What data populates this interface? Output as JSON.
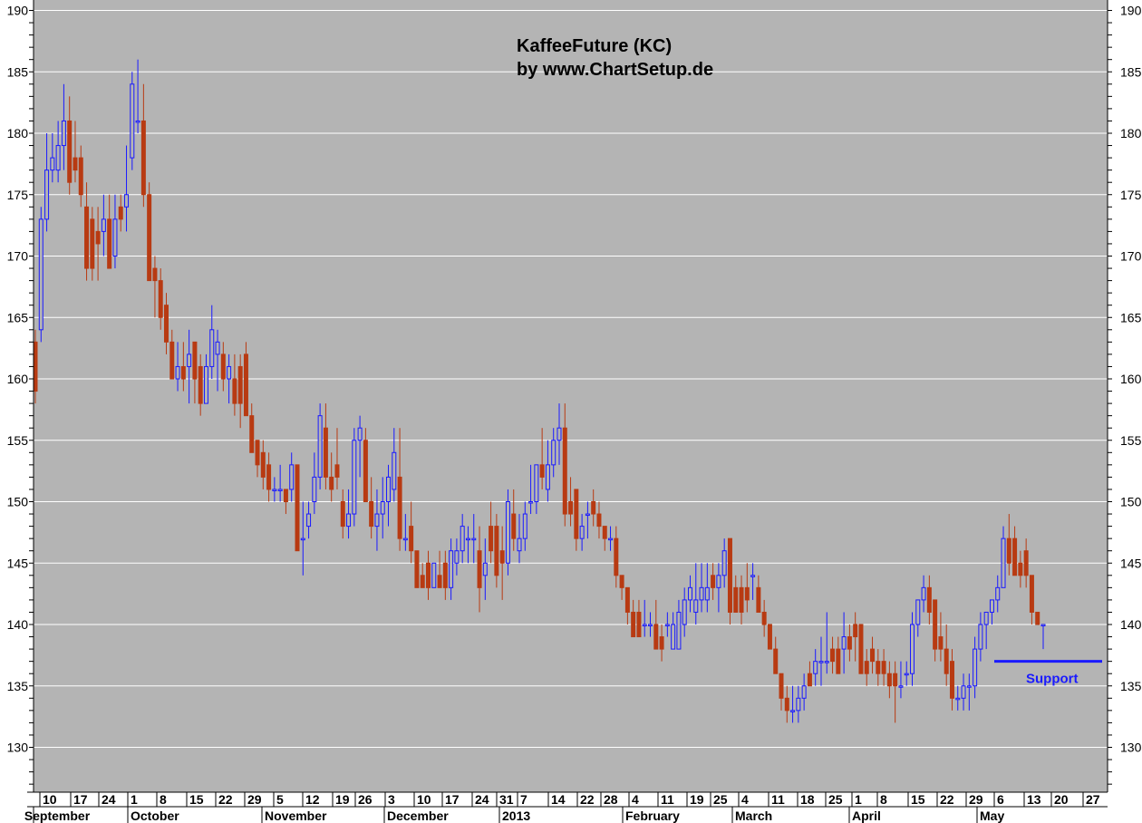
{
  "chart_data": {
    "type": "candlestick",
    "title": "KaffeeFuture (KC)",
    "subtitle": "by www.ChartSetup.de",
    "ylim": [
      126,
      191
    ],
    "yticks": [
      130,
      135,
      140,
      145,
      150,
      155,
      160,
      165,
      170,
      175,
      180,
      185,
      190
    ],
    "grid": true,
    "colors": {
      "background": "#b4b4b4",
      "up": "#1a1aff",
      "down": "#b83a12",
      "grid": "#ffffff",
      "support": "#1a1aff"
    },
    "week_ticks": [
      "10",
      "17",
      "24",
      "1",
      "8",
      "15",
      "22",
      "29",
      "5",
      "12",
      "19",
      "26",
      "3",
      "10",
      "17",
      "24",
      "31",
      "7",
      "14",
      "22",
      "28",
      "4",
      "11",
      "19",
      "25",
      "4",
      "11",
      "18",
      "25",
      "1",
      "8",
      "15",
      "22",
      "29",
      "6",
      "13",
      "20",
      "27"
    ],
    "month_labels": [
      "September",
      "October",
      "November",
      "December",
      "2013",
      "February",
      "March",
      "April",
      "May"
    ],
    "annotation": {
      "label": "Support",
      "value": 137
    },
    "candles": [
      {
        "o": 163,
        "h": 164,
        "l": 158,
        "c": 159
      },
      {
        "o": 164,
        "h": 174,
        "l": 163,
        "c": 173
      },
      {
        "o": 173,
        "h": 180,
        "l": 172,
        "c": 177
      },
      {
        "o": 177,
        "h": 180,
        "l": 176,
        "c": 178
      },
      {
        "o": 177,
        "h": 181,
        "l": 176,
        "c": 179
      },
      {
        "o": 179,
        "h": 184,
        "l": 177,
        "c": 181
      },
      {
        "o": 181,
        "h": 183,
        "l": 175,
        "c": 176
      },
      {
        "o": 178,
        "h": 181,
        "l": 176,
        "c": 177
      },
      {
        "o": 178,
        "h": 179,
        "l": 174,
        "c": 175
      },
      {
        "o": 174,
        "h": 176,
        "l": 168,
        "c": 169
      },
      {
        "o": 173,
        "h": 174,
        "l": 168,
        "c": 169
      },
      {
        "o": 172,
        "h": 174,
        "l": 168,
        "c": 171
      },
      {
        "o": 172,
        "h": 175,
        "l": 170,
        "c": 173
      },
      {
        "o": 173,
        "h": 175,
        "l": 169,
        "c": 169
      },
      {
        "o": 170,
        "h": 175,
        "l": 169,
        "c": 173
      },
      {
        "o": 174,
        "h": 175,
        "l": 172,
        "c": 173
      },
      {
        "o": 174,
        "h": 179,
        "l": 172,
        "c": 175
      },
      {
        "o": 178,
        "h": 185,
        "l": 177,
        "c": 184
      },
      {
        "o": 181,
        "h": 186,
        "l": 180,
        "c": 181
      },
      {
        "o": 181,
        "h": 184,
        "l": 174,
        "c": 175
      },
      {
        "o": 175,
        "h": 176,
        "l": 168,
        "c": 168
      },
      {
        "o": 169,
        "h": 170,
        "l": 165,
        "c": 168
      },
      {
        "o": 168,
        "h": 169,
        "l": 164,
        "c": 165
      },
      {
        "o": 166,
        "h": 167,
        "l": 162,
        "c": 163
      },
      {
        "o": 163,
        "h": 164,
        "l": 160,
        "c": 160
      },
      {
        "o": 160,
        "h": 163,
        "l": 159,
        "c": 161
      },
      {
        "o": 161,
        "h": 163,
        "l": 159,
        "c": 160
      },
      {
        "o": 161,
        "h": 164,
        "l": 158,
        "c": 162
      },
      {
        "o": 163,
        "h": 163,
        "l": 158,
        "c": 160
      },
      {
        "o": 161,
        "h": 162,
        "l": 157,
        "c": 158
      },
      {
        "o": 158,
        "h": 162,
        "l": 158,
        "c": 161
      },
      {
        "o": 161,
        "h": 166,
        "l": 160,
        "c": 164
      },
      {
        "o": 162,
        "h": 164,
        "l": 159,
        "c": 163
      },
      {
        "o": 162,
        "h": 163,
        "l": 159,
        "c": 160
      },
      {
        "o": 160,
        "h": 162,
        "l": 158,
        "c": 161
      },
      {
        "o": 160,
        "h": 162,
        "l": 157,
        "c": 158
      },
      {
        "o": 161,
        "h": 162,
        "l": 156,
        "c": 158
      },
      {
        "o": 162,
        "h": 163,
        "l": 157,
        "c": 157
      },
      {
        "o": 157,
        "h": 158,
        "l": 154,
        "c": 154
      },
      {
        "o": 155,
        "h": 155,
        "l": 152,
        "c": 153
      },
      {
        "o": 154,
        "h": 155,
        "l": 151,
        "c": 152
      },
      {
        "o": 153,
        "h": 154,
        "l": 150,
        "c": 151
      },
      {
        "o": 151,
        "h": 152,
        "l": 150,
        "c": 151
      },
      {
        "o": 151,
        "h": 153,
        "l": 150,
        "c": 151
      },
      {
        "o": 151,
        "h": 151,
        "l": 149,
        "c": 150
      },
      {
        "o": 151,
        "h": 154,
        "l": 150,
        "c": 153
      },
      {
        "o": 153,
        "h": 153,
        "l": 146,
        "c": 146
      },
      {
        "o": 147,
        "h": 150,
        "l": 144,
        "c": 147
      },
      {
        "o": 148,
        "h": 150,
        "l": 147,
        "c": 149
      },
      {
        "o": 150,
        "h": 154,
        "l": 149,
        "c": 152
      },
      {
        "o": 152,
        "h": 158,
        "l": 151,
        "c": 157
      },
      {
        "o": 156,
        "h": 158,
        "l": 151,
        "c": 152
      },
      {
        "o": 152,
        "h": 154,
        "l": 150,
        "c": 151
      },
      {
        "o": 153,
        "h": 156,
        "l": 151,
        "c": 152
      },
      {
        "o": 150,
        "h": 151,
        "l": 147,
        "c": 148
      },
      {
        "o": 148,
        "h": 151,
        "l": 147,
        "c": 149
      },
      {
        "o": 149,
        "h": 156,
        "l": 148,
        "c": 155
      },
      {
        "o": 155,
        "h": 157,
        "l": 152,
        "c": 156
      },
      {
        "o": 155,
        "h": 156,
        "l": 150,
        "c": 150
      },
      {
        "o": 150,
        "h": 152,
        "l": 147,
        "c": 148
      },
      {
        "o": 148,
        "h": 151,
        "l": 146,
        "c": 149
      },
      {
        "o": 149,
        "h": 152,
        "l": 147,
        "c": 150
      },
      {
        "o": 150,
        "h": 153,
        "l": 148,
        "c": 152
      },
      {
        "o": 151,
        "h": 156,
        "l": 150,
        "c": 154
      },
      {
        "o": 152,
        "h": 156,
        "l": 146,
        "c": 147
      },
      {
        "o": 147,
        "h": 149,
        "l": 146,
        "c": 147
      },
      {
        "o": 148,
        "h": 150,
        "l": 145,
        "c": 146
      },
      {
        "o": 146,
        "h": 146,
        "l": 143,
        "c": 143
      },
      {
        "o": 144,
        "h": 145,
        "l": 143,
        "c": 143
      },
      {
        "o": 145,
        "h": 146,
        "l": 142,
        "c": 143
      },
      {
        "o": 143,
        "h": 145,
        "l": 143,
        "c": 145
      },
      {
        "o": 144,
        "h": 146,
        "l": 143,
        "c": 143
      },
      {
        "o": 145,
        "h": 146,
        "l": 142,
        "c": 143
      },
      {
        "o": 143,
        "h": 147,
        "l": 142,
        "c": 146
      },
      {
        "o": 145,
        "h": 147,
        "l": 144,
        "c": 146
      },
      {
        "o": 146,
        "h": 149,
        "l": 145,
        "c": 148
      },
      {
        "o": 147,
        "h": 148,
        "l": 145,
        "c": 147
      },
      {
        "o": 147,
        "h": 149,
        "l": 145,
        "c": 147
      },
      {
        "o": 146,
        "h": 148,
        "l": 141,
        "c": 143
      },
      {
        "o": 144,
        "h": 147,
        "l": 142,
        "c": 145
      },
      {
        "o": 148,
        "h": 150,
        "l": 145,
        "c": 146
      },
      {
        "o": 148,
        "h": 149,
        "l": 143,
        "c": 144
      },
      {
        "o": 146,
        "h": 148,
        "l": 142,
        "c": 145
      },
      {
        "o": 145,
        "h": 151,
        "l": 144,
        "c": 150
      },
      {
        "o": 149,
        "h": 151,
        "l": 146,
        "c": 147
      },
      {
        "o": 146,
        "h": 149,
        "l": 145,
        "c": 147
      },
      {
        "o": 147,
        "h": 150,
        "l": 146,
        "c": 149
      },
      {
        "o": 150,
        "h": 153,
        "l": 149,
        "c": 150
      },
      {
        "o": 150,
        "h": 153,
        "l": 149,
        "c": 153
      },
      {
        "o": 153,
        "h": 156,
        "l": 151,
        "c": 152
      },
      {
        "o": 151,
        "h": 155,
        "l": 150,
        "c": 153
      },
      {
        "o": 153,
        "h": 156,
        "l": 152,
        "c": 155
      },
      {
        "o": 155,
        "h": 158,
        "l": 153,
        "c": 156
      },
      {
        "o": 156,
        "h": 158,
        "l": 148,
        "c": 149
      },
      {
        "o": 150,
        "h": 152,
        "l": 148,
        "c": 149
      },
      {
        "o": 151,
        "h": 151,
        "l": 146,
        "c": 147
      },
      {
        "o": 147,
        "h": 149,
        "l": 146,
        "c": 148
      },
      {
        "o": 149,
        "h": 150,
        "l": 147,
        "c": 149
      },
      {
        "o": 150,
        "h": 151,
        "l": 148,
        "c": 149
      },
      {
        "o": 149,
        "h": 150,
        "l": 147,
        "c": 148
      },
      {
        "o": 148,
        "h": 148,
        "l": 146,
        "c": 147
      },
      {
        "o": 147,
        "h": 148,
        "l": 146,
        "c": 147
      },
      {
        "o": 147,
        "h": 148,
        "l": 143,
        "c": 144
      },
      {
        "o": 144,
        "h": 144,
        "l": 142,
        "c": 143
      },
      {
        "o": 143,
        "h": 143,
        "l": 140,
        "c": 141
      },
      {
        "o": 141,
        "h": 142,
        "l": 139,
        "c": 139
      },
      {
        "o": 141,
        "h": 142,
        "l": 139,
        "c": 139
      },
      {
        "o": 140,
        "h": 142,
        "l": 139,
        "c": 140
      },
      {
        "o": 140,
        "h": 141,
        "l": 139,
        "c": 140
      },
      {
        "o": 140,
        "h": 142,
        "l": 138,
        "c": 138
      },
      {
        "o": 139,
        "h": 140,
        "l": 137,
        "c": 138
      },
      {
        "o": 140,
        "h": 141,
        "l": 139,
        "c": 140
      },
      {
        "o": 138,
        "h": 141,
        "l": 138,
        "c": 140
      },
      {
        "o": 138,
        "h": 142,
        "l": 138,
        "c": 141
      },
      {
        "o": 140,
        "h": 143,
        "l": 139,
        "c": 142
      },
      {
        "o": 142,
        "h": 144,
        "l": 141,
        "c": 143
      },
      {
        "o": 141,
        "h": 145,
        "l": 140,
        "c": 142
      },
      {
        "o": 142,
        "h": 145,
        "l": 141,
        "c": 143
      },
      {
        "o": 142,
        "h": 145,
        "l": 141,
        "c": 143
      },
      {
        "o": 144,
        "h": 145,
        "l": 142,
        "c": 143
      },
      {
        "o": 143,
        "h": 145,
        "l": 141,
        "c": 144
      },
      {
        "o": 144,
        "h": 147,
        "l": 143,
        "c": 146
      },
      {
        "o": 147,
        "h": 147,
        "l": 140,
        "c": 141
      },
      {
        "o": 143,
        "h": 144,
        "l": 141,
        "c": 141
      },
      {
        "o": 143,
        "h": 144,
        "l": 140,
        "c": 141
      },
      {
        "o": 143,
        "h": 145,
        "l": 141,
        "c": 142
      },
      {
        "o": 144,
        "h": 145,
        "l": 142,
        "c": 144
      },
      {
        "o": 143,
        "h": 144,
        "l": 141,
        "c": 141
      },
      {
        "o": 141,
        "h": 142,
        "l": 139,
        "c": 140
      },
      {
        "o": 140,
        "h": 140,
        "l": 138,
        "c": 138
      },
      {
        "o": 138,
        "h": 139,
        "l": 136,
        "c": 136
      },
      {
        "o": 136,
        "h": 136,
        "l": 133,
        "c": 134
      },
      {
        "o": 134,
        "h": 135,
        "l": 132,
        "c": 133
      },
      {
        "o": 133,
        "h": 135,
        "l": 132,
        "c": 133
      },
      {
        "o": 133,
        "h": 135,
        "l": 132,
        "c": 134
      },
      {
        "o": 134,
        "h": 136,
        "l": 133,
        "c": 135
      },
      {
        "o": 136,
        "h": 137,
        "l": 135,
        "c": 135
      },
      {
        "o": 136,
        "h": 138,
        "l": 135,
        "c": 137
      },
      {
        "o": 137,
        "h": 139,
        "l": 135,
        "c": 137
      },
      {
        "o": 137,
        "h": 141,
        "l": 136,
        "c": 137
      },
      {
        "o": 138,
        "h": 139,
        "l": 136,
        "c": 137
      },
      {
        "o": 138,
        "h": 139,
        "l": 136,
        "c": 136
      },
      {
        "o": 138,
        "h": 141,
        "l": 136,
        "c": 139
      },
      {
        "o": 139,
        "h": 140,
        "l": 137,
        "c": 138
      },
      {
        "o": 140,
        "h": 141,
        "l": 137,
        "c": 139
      },
      {
        "o": 140,
        "h": 140,
        "l": 136,
        "c": 136
      },
      {
        "o": 137,
        "h": 138,
        "l": 135,
        "c": 136
      },
      {
        "o": 138,
        "h": 139,
        "l": 136,
        "c": 137
      },
      {
        "o": 137,
        "h": 138,
        "l": 135,
        "c": 136
      },
      {
        "o": 137,
        "h": 138,
        "l": 135,
        "c": 136
      },
      {
        "o": 136,
        "h": 137,
        "l": 134,
        "c": 135
      },
      {
        "o": 136,
        "h": 137,
        "l": 132,
        "c": 135
      },
      {
        "o": 135,
        "h": 137,
        "l": 134,
        "c": 135
      },
      {
        "o": 136,
        "h": 137,
        "l": 135,
        "c": 136
      },
      {
        "o": 136,
        "h": 141,
        "l": 135,
        "c": 140
      },
      {
        "o": 140,
        "h": 142,
        "l": 139,
        "c": 142
      },
      {
        "o": 142,
        "h": 144,
        "l": 141,
        "c": 143
      },
      {
        "o": 143,
        "h": 144,
        "l": 140,
        "c": 141
      },
      {
        "o": 142,
        "h": 142,
        "l": 137,
        "c": 138
      },
      {
        "o": 139,
        "h": 141,
        "l": 137,
        "c": 138
      },
      {
        "o": 138,
        "h": 140,
        "l": 135,
        "c": 136
      },
      {
        "o": 137,
        "h": 138,
        "l": 133,
        "c": 134
      },
      {
        "o": 134,
        "h": 135,
        "l": 133,
        "c": 134
      },
      {
        "o": 134,
        "h": 136,
        "l": 133,
        "c": 135
      },
      {
        "o": 135,
        "h": 136,
        "l": 133,
        "c": 135
      },
      {
        "o": 135,
        "h": 139,
        "l": 134,
        "c": 138
      },
      {
        "o": 138,
        "h": 141,
        "l": 137,
        "c": 140
      },
      {
        "o": 140,
        "h": 141,
        "l": 138,
        "c": 141
      },
      {
        "o": 141,
        "h": 142,
        "l": 140,
        "c": 142
      },
      {
        "o": 142,
        "h": 144,
        "l": 141,
        "c": 143
      },
      {
        "o": 143,
        "h": 148,
        "l": 143,
        "c": 147
      },
      {
        "o": 147,
        "h": 149,
        "l": 144,
        "c": 145
      },
      {
        "o": 147,
        "h": 148,
        "l": 144,
        "c": 144
      },
      {
        "o": 145,
        "h": 146,
        "l": 143,
        "c": 144
      },
      {
        "o": 146,
        "h": 147,
        "l": 143,
        "c": 144
      },
      {
        "o": 144,
        "h": 144,
        "l": 140,
        "c": 141
      },
      {
        "o": 141,
        "h": 141,
        "l": 140,
        "c": 140
      },
      {
        "o": 140,
        "h": 140,
        "l": 138,
        "c": 140
      }
    ]
  }
}
